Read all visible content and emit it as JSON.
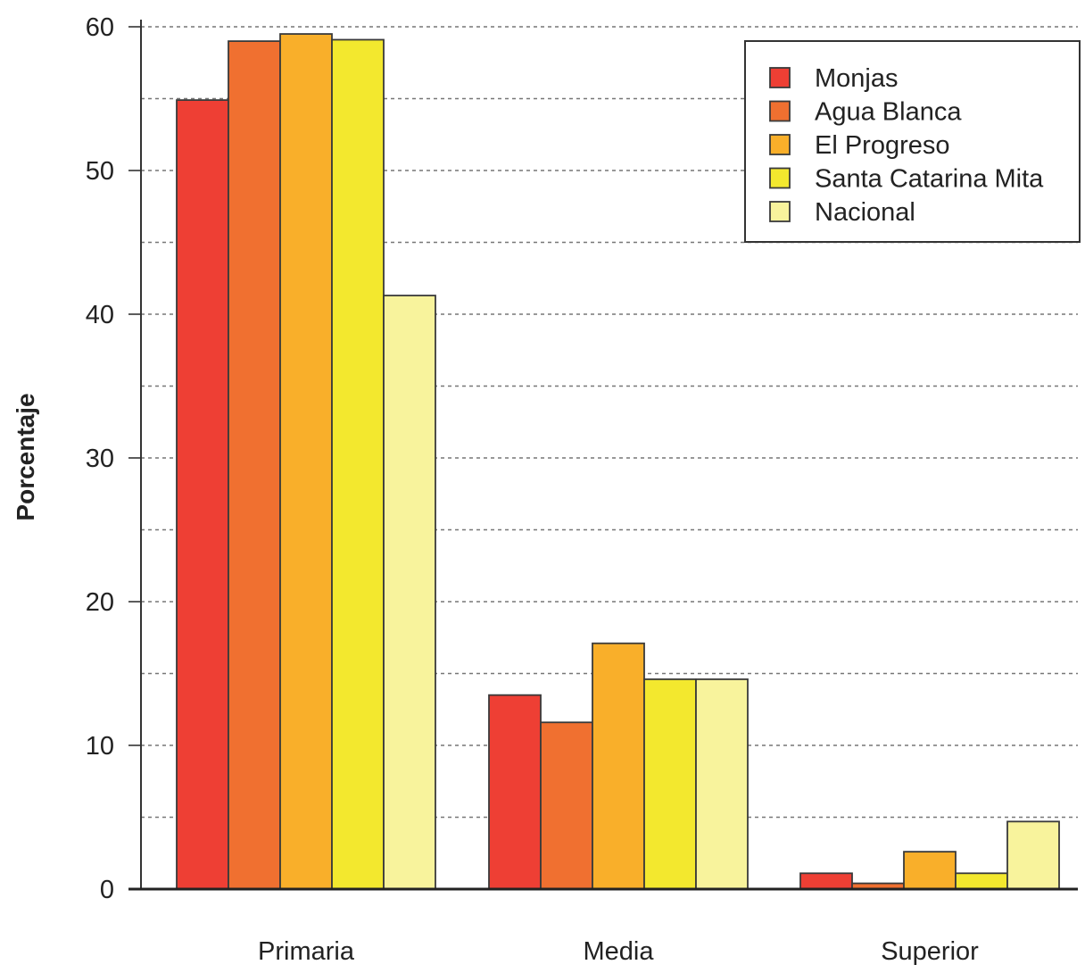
{
  "chart_data": {
    "type": "bar",
    "title": "",
    "xlabel": "",
    "ylabel": "Porcentaje",
    "ylim": [
      0,
      60
    ],
    "yticks": [
      0,
      10,
      20,
      30,
      40,
      50,
      60
    ],
    "grid": true,
    "grid_minor_step": 5,
    "legend_position": "top-right",
    "categories": [
      "Primaria",
      "Media",
      "Superior"
    ],
    "series": [
      {
        "name": "Monjas",
        "color": "#EE3F34",
        "values": [
          54.9,
          13.5,
          1.1
        ]
      },
      {
        "name": "Agua Blanca",
        "color": "#F07030",
        "values": [
          59.0,
          11.6,
          0.4
        ]
      },
      {
        "name": "El Progreso",
        "color": "#F9AF2A",
        "values": [
          59.5,
          17.1,
          2.6
        ]
      },
      {
        "name": "Santa Catarina Mita",
        "color": "#F3E82E",
        "values": [
          59.1,
          14.6,
          1.1
        ]
      },
      {
        "name": "Nacional",
        "color": "#F8F39C",
        "values": [
          41.3,
          14.6,
          4.7
        ]
      }
    ]
  }
}
